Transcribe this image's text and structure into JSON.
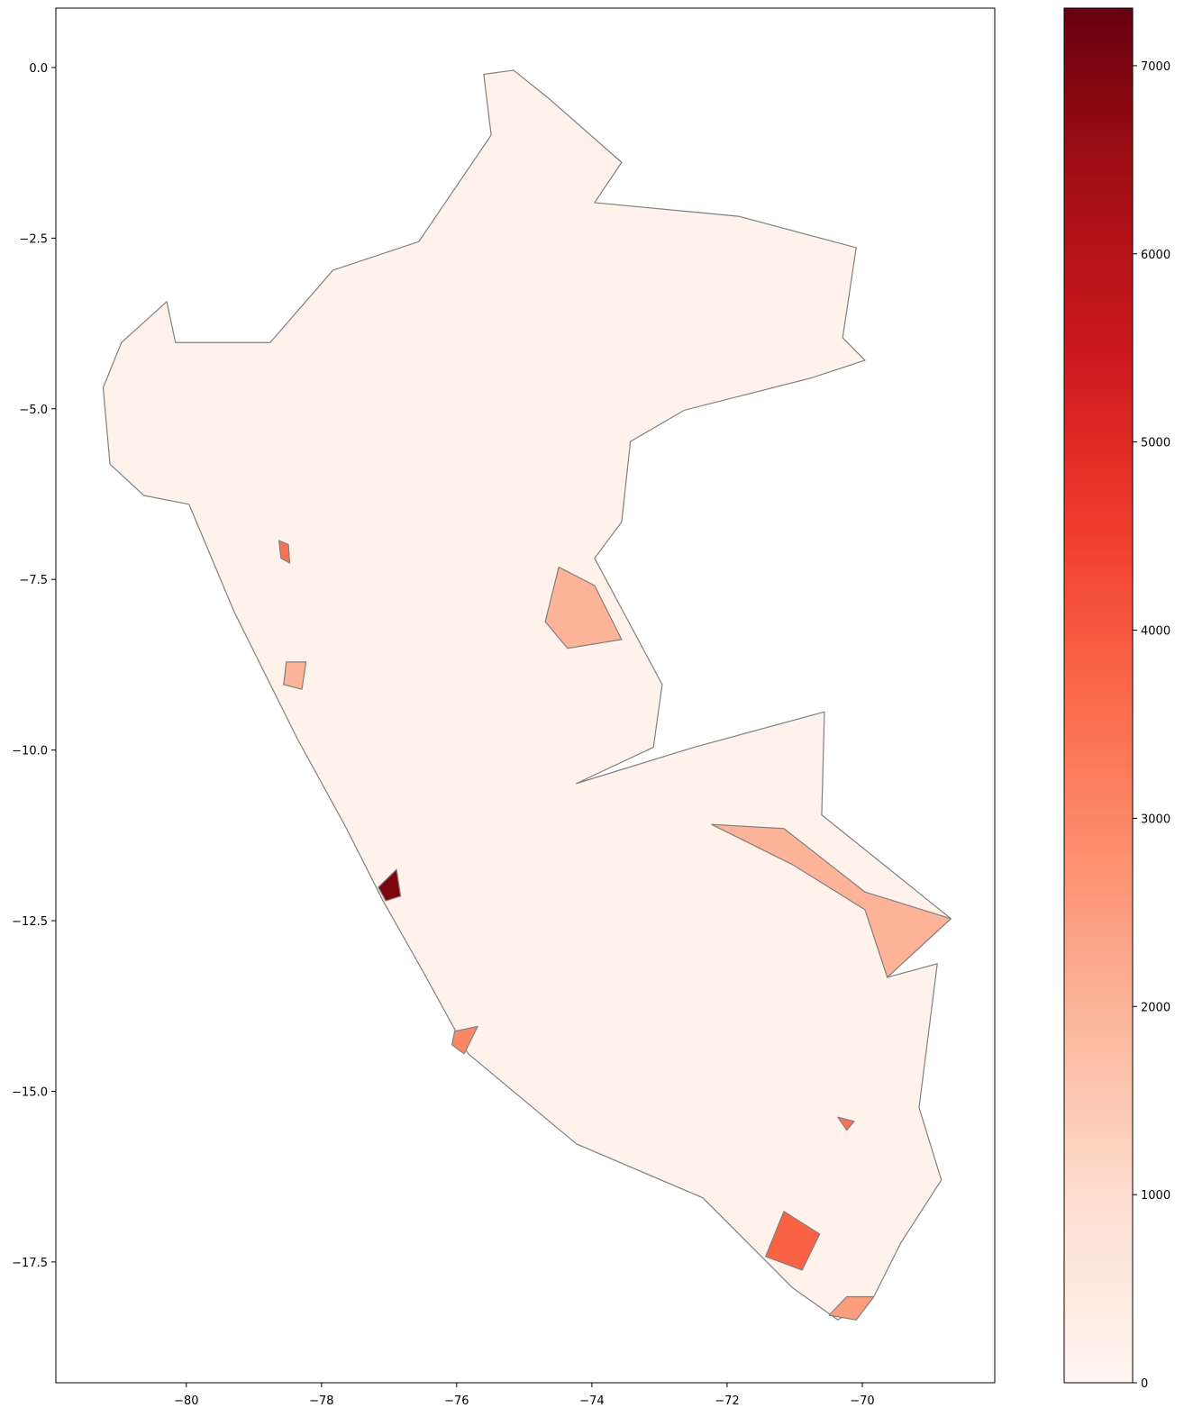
{
  "chart_data": {
    "type": "choropleth",
    "xlim": [
      -81.93,
      -68.04
    ],
    "ylim": [
      -19.27,
      0.87
    ],
    "xticks": [
      {
        "value": -80,
        "label": "−80"
      },
      {
        "value": -78,
        "label": "−78"
      },
      {
        "value": -76,
        "label": "−76"
      },
      {
        "value": -74,
        "label": "−74"
      },
      {
        "value": -72,
        "label": "−72"
      },
      {
        "value": -70,
        "label": "−70"
      }
    ],
    "yticks": [
      {
        "value": 0,
        "label": "0.0"
      },
      {
        "value": -2.5,
        "label": "−2.5"
      },
      {
        "value": -5,
        "label": "−5.0"
      },
      {
        "value": -7.5,
        "label": "−7.5"
      },
      {
        "value": -10,
        "label": "−10.0"
      },
      {
        "value": -12.5,
        "label": "−12.5"
      },
      {
        "value": -15,
        "label": "−15.0"
      },
      {
        "value": -17.5,
        "label": "−17.5"
      }
    ],
    "colormap": "Reds",
    "colormap_colors": [
      "#fff5f0",
      "#fee0d2",
      "#fcbba1",
      "#fc9272",
      "#fb6a4a",
      "#ef3b2c",
      "#cb181d",
      "#a50f15",
      "#67000d"
    ],
    "edge_color": "#808080",
    "clim": [
      0,
      7306
    ],
    "cticks": [
      0,
      1000,
      2000,
      3000,
      4000,
      5000,
      6000,
      7000
    ],
    "regions": [
      {
        "lon": [
          -75.6,
          -75.16,
          -74.63,
          -73.56,
          -73.96,
          -71.83,
          -70.09,
          -70.29,
          -69.96,
          -70.76,
          -72.63,
          -73.43,
          -73.56,
          -73.96,
          -72.96,
          -73.09,
          -74.23,
          -72.49,
          -70.56,
          -70.6,
          -68.69,
          -69.63,
          -68.89,
          -69.16,
          -68.83,
          -69.43,
          -69.83,
          -70.36,
          -71.03,
          -72.36,
          -74.23,
          -75.83,
          -76.49,
          -77.09,
          -77.63,
          -78.36,
          -79.29,
          -79.96,
          -80.63,
          -81.13,
          -81.23,
          -80.96,
          -80.29,
          -80.16,
          -78.76,
          -77.83,
          -76.56,
          -75.49
        ],
        "lat": [
          -0.1,
          -0.04,
          -0.46,
          -1.39,
          -1.98,
          -2.18,
          -2.64,
          -3.96,
          -4.29,
          -4.55,
          -5.02,
          -5.48,
          -6.66,
          -7.19,
          -9.04,
          -9.96,
          -10.49,
          -9.96,
          -9.44,
          -10.95,
          -12.47,
          -13.33,
          -13.13,
          -15.24,
          -16.3,
          -17.22,
          -18.01,
          -18.35,
          -17.88,
          -16.56,
          -15.77,
          -14.45,
          -13.26,
          -12.21,
          -11.15,
          -9.83,
          -7.98,
          -6.4,
          -6.27,
          -5.81,
          -4.69,
          -4.03,
          -3.43,
          -4.03,
          -4.03,
          -2.97,
          -2.55,
          -0.99
        ],
        "value": 150
      },
      {
        "lon": [
          -74.49,
          -73.96,
          -73.56,
          -74.36,
          -74.69
        ],
        "lat": [
          -7.32,
          -7.59,
          -8.38,
          -8.51,
          -8.12
        ],
        "value": 2000
      },
      {
        "lon": [
          -72.23,
          -71.16,
          -69.96,
          -68.69,
          -69.63,
          -69.96,
          -71.03
        ],
        "lat": [
          -11.09,
          -11.15,
          -12.08,
          -12.47,
          -13.33,
          -12.34,
          -11.68
        ],
        "value": 2000
      },
      {
        "lon": [
          -71.16,
          -70.63,
          -70.89,
          -71.43
        ],
        "lat": [
          -16.76,
          -17.09,
          -17.62,
          -17.42
        ],
        "value": 3800
      },
      {
        "lon": [
          -76.03,
          -75.69,
          -75.89,
          -76.07
        ],
        "lat": [
          -14.12,
          -14.05,
          -14.45,
          -14.32
        ],
        "value": 3000
      },
      {
        "lon": [
          -77.16,
          -76.89,
          -76.83,
          -77.05
        ],
        "lat": [
          -12.01,
          -11.75,
          -12.14,
          -12.21
        ],
        "value": 7000
      },
      {
        "lon": [
          -78.63,
          -78.49,
          -78.47,
          -78.6
        ],
        "lat": [
          -6.93,
          -6.99,
          -7.26,
          -7.19
        ],
        "value": 3500
      },
      {
        "lon": [
          -70.36,
          -70.12,
          -70.23
        ],
        "lat": [
          -15.38,
          -15.44,
          -15.57
        ],
        "value": 3500
      },
      {
        "lon": [
          -70.23,
          -69.83,
          -70.09,
          -70.49
        ],
        "lat": [
          -18.01,
          -18.01,
          -18.35,
          -18.28
        ],
        "value": 2500
      },
      {
        "lon": [
          -78.52,
          -78.23,
          -78.29,
          -78.56
        ],
        "lat": [
          -8.71,
          -8.71,
          -9.11,
          -9.04
        ],
        "value": 2000
      }
    ]
  }
}
